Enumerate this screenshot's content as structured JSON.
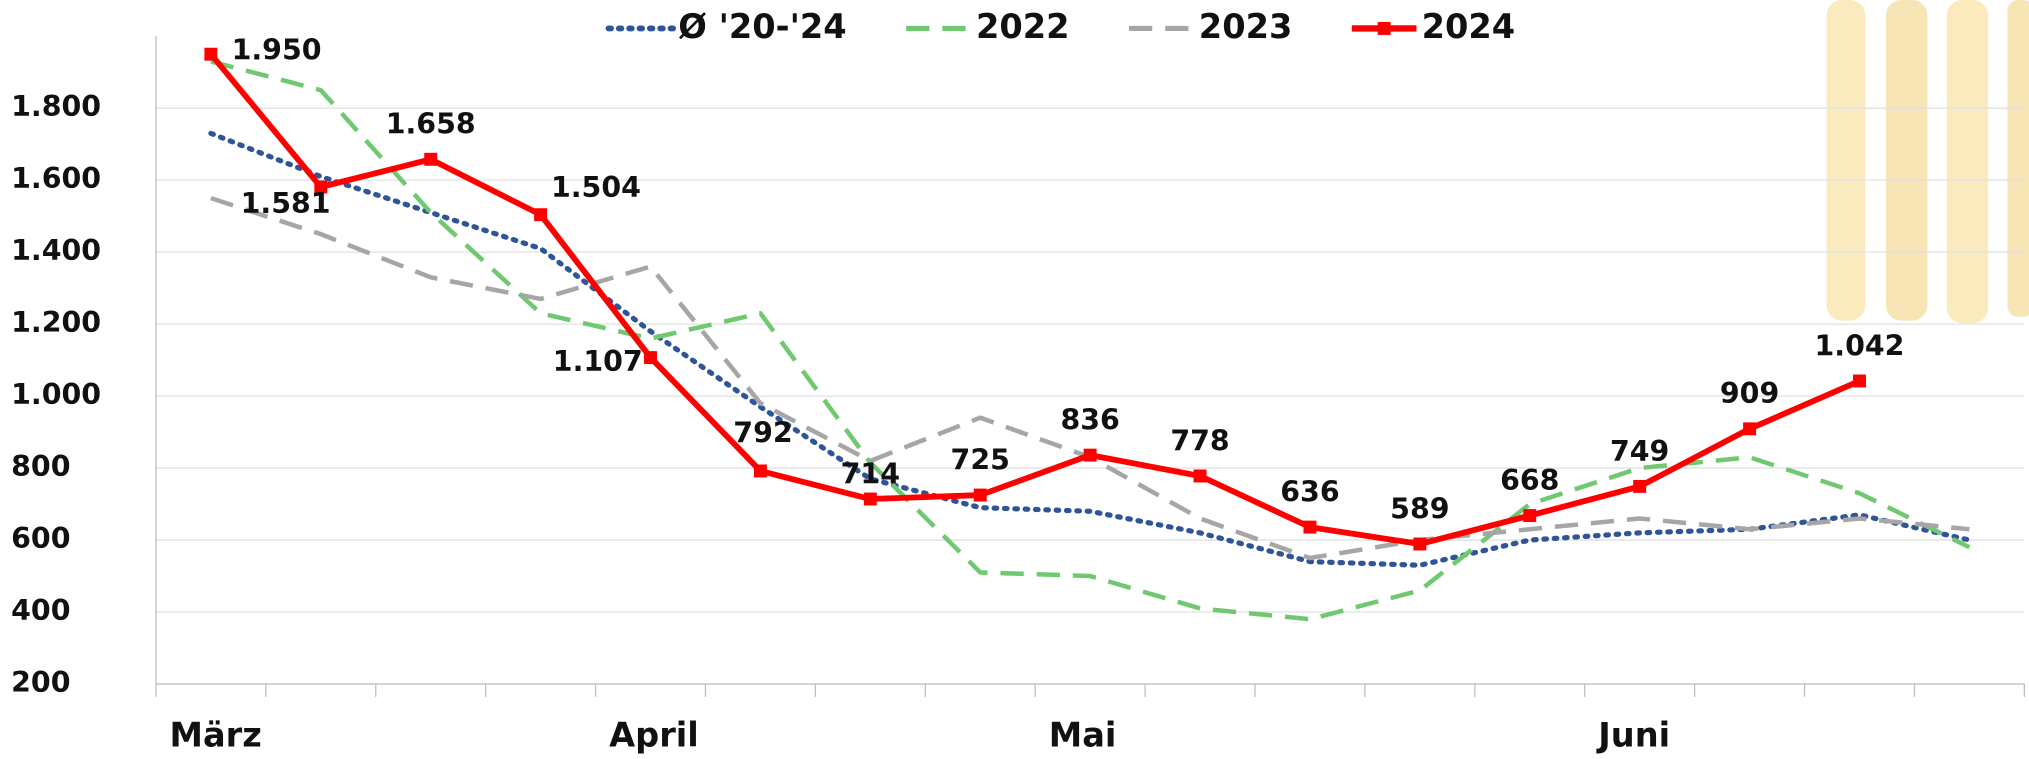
{
  "chart_data": {
    "type": "line",
    "categories": [
      "März",
      null,
      null,
      null,
      "April",
      null,
      null,
      null,
      "Mai",
      null,
      null,
      null,
      null,
      "Juni",
      null,
      null,
      null
    ],
    "series": [
      {
        "name": "Ø '20-'24",
        "color": "#2f5597",
        "style": "dotted",
        "values": [
          1730,
          1610,
          1510,
          1410,
          1180,
          970,
          770,
          690,
          680,
          620,
          540,
          530,
          600,
          620,
          630,
          670,
          600
        ]
      },
      {
        "name": "2022",
        "color": "#70c870",
        "style": "dashed",
        "values": [
          1930,
          1850,
          1510,
          1230,
          1160,
          1230,
          815,
          510,
          500,
          410,
          380,
          460,
          700,
          800,
          830,
          730,
          580
        ]
      },
      {
        "name": "2023",
        "color": "#a6a6a6",
        "style": "dashed",
        "values": [
          1550,
          1450,
          1330,
          1270,
          1360,
          980,
          820,
          940,
          830,
          660,
          550,
          600,
          630,
          660,
          630,
          660,
          630
        ]
      },
      {
        "name": "2024",
        "color": "#ff0000",
        "style": "solid",
        "markers": true,
        "values": [
          1950,
          1581,
          1658,
          1504,
          1107,
          792,
          714,
          725,
          836,
          778,
          636,
          589,
          668,
          749,
          909,
          1042,
          null
        ],
        "value_labels": [
          "1.950",
          "1.581",
          "1.658",
          "1.504",
          "1.107",
          "792",
          "714",
          "725",
          "836",
          "778",
          "636",
          "589",
          "668",
          "749",
          "909",
          "1.042",
          null
        ]
      }
    ],
    "ylim": [
      200,
      2000
    ],
    "yticks": [
      {
        "value": 200,
        "label": "200"
      },
      {
        "value": 400,
        "label": "400"
      },
      {
        "value": 600,
        "label": "600"
      },
      {
        "value": 800,
        "label": "800"
      },
      {
        "value": 1000,
        "label": "1.000"
      },
      {
        "value": 1200,
        "label": "1.200"
      },
      {
        "value": 1400,
        "label": "1.400"
      },
      {
        "value": 1600,
        "label": "1.600"
      },
      {
        "value": 1800,
        "label": "1.800"
      }
    ],
    "grid": true,
    "legend": "top"
  }
}
